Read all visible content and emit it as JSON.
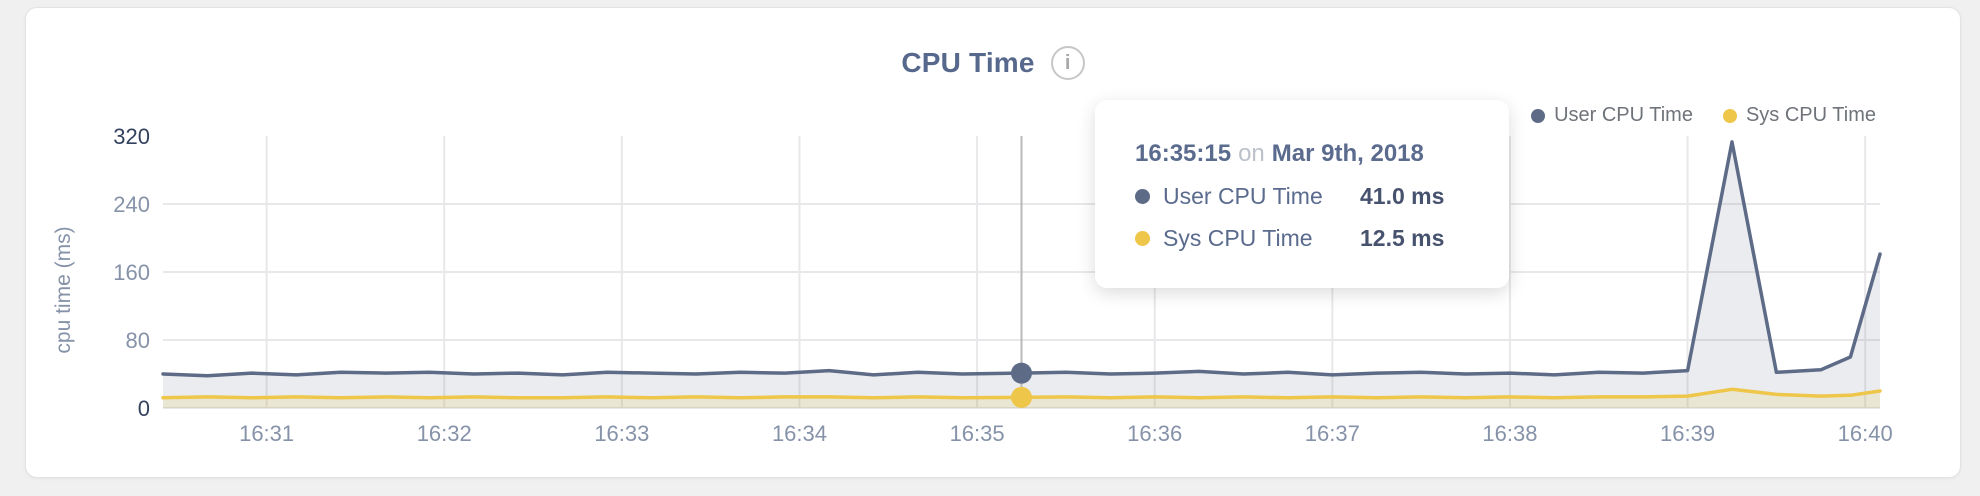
{
  "header": {
    "title": "CPU Time",
    "info_icon": "i"
  },
  "legend": {
    "items": [
      {
        "label": "User CPU Time",
        "color": "#5d6b87"
      },
      {
        "label": "Sys CPU Time",
        "color": "#eec649"
      }
    ]
  },
  "axes": {
    "y_label": "cpu time (ms)"
  },
  "tooltip": {
    "time": "16:35:15",
    "connector": "on",
    "date": "Mar 9th, 2018",
    "rows": [
      {
        "label": "User CPU Time",
        "value": "41.0 ms",
        "color": "#5d6b87"
      },
      {
        "label": "Sys CPU Time",
        "value": "12.5 ms",
        "color": "#eec649"
      }
    ]
  },
  "chart_data": {
    "type": "area",
    "title": "CPU Time",
    "xlabel": "",
    "ylabel": "cpu time (ms)",
    "ylim": [
      0,
      320
    ],
    "y_ticks": [
      {
        "v": 0,
        "label": "0",
        "strong": true,
        "grid": true
      },
      {
        "v": 80,
        "label": "80",
        "strong": false,
        "grid": true
      },
      {
        "v": 160,
        "label": "160",
        "strong": false,
        "grid": true
      },
      {
        "v": 240,
        "label": "240",
        "strong": false,
        "grid": true
      },
      {
        "v": 320,
        "label": "320",
        "strong": true,
        "grid": false
      }
    ],
    "x_ticks": [
      "16:31",
      "16:32",
      "16:33",
      "16:34",
      "16:35",
      "16:36",
      "16:37",
      "16:38",
      "16:39",
      "16:40"
    ],
    "grid": true,
    "legend_position": "top-right",
    "x": [
      "16:30:25",
      "16:30:40",
      "16:30:55",
      "16:31:10",
      "16:31:25",
      "16:31:40",
      "16:31:55",
      "16:32:10",
      "16:32:25",
      "16:32:40",
      "16:32:55",
      "16:33:10",
      "16:33:25",
      "16:33:40",
      "16:33:55",
      "16:34:10",
      "16:34:25",
      "16:34:40",
      "16:34:55",
      "16:35:15",
      "16:35:30",
      "16:35:45",
      "16:36:00",
      "16:36:15",
      "16:36:30",
      "16:36:45",
      "16:37:00",
      "16:37:15",
      "16:37:30",
      "16:37:45",
      "16:38:00",
      "16:38:15",
      "16:38:30",
      "16:38:45",
      "16:39:00",
      "16:39:15",
      "16:39:30",
      "16:39:45",
      "16:39:55",
      "16:40:05"
    ],
    "series": [
      {
        "name": "User CPU Time",
        "color": "#5d6b87",
        "fill": "rgba(93,107,135,0.13)",
        "values": [
          40,
          38,
          41,
          39,
          42,
          41,
          42,
          40,
          41,
          39,
          42,
          41,
          40,
          42,
          41,
          44,
          39,
          42,
          40,
          41,
          42,
          40,
          41,
          43,
          40,
          42,
          39,
          41,
          42,
          40,
          41,
          39,
          42,
          41,
          44,
          313,
          42,
          45,
          60,
          181
        ]
      },
      {
        "name": "Sys CPU Time",
        "color": "#eec649",
        "fill": "rgba(238,198,73,0.16)",
        "values": [
          12,
          13,
          12,
          13,
          12,
          13,
          12,
          13,
          12,
          12,
          13,
          12,
          13,
          12,
          13,
          13,
          12,
          13,
          12,
          12.5,
          13,
          12,
          13,
          12,
          13,
          12,
          13,
          12,
          13,
          12,
          13,
          12,
          13,
          13,
          14,
          22,
          16,
          14,
          15,
          20
        ]
      }
    ],
    "hover": {
      "x": "16:35:15",
      "values": [
        41.0,
        12.5
      ]
    }
  }
}
